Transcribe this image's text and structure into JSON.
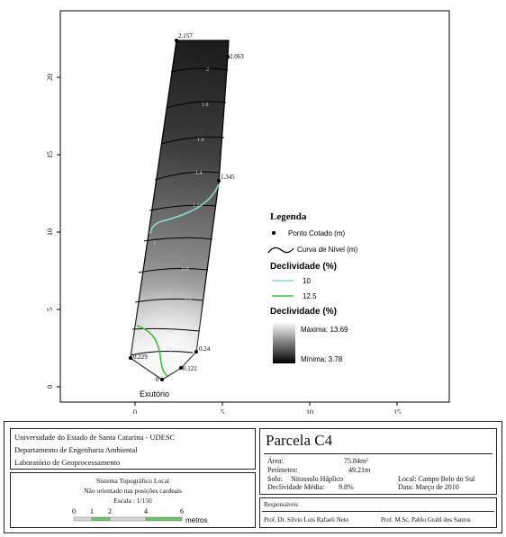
{
  "map": {
    "x_ticks": [
      "0",
      "5",
      "10",
      "15"
    ],
    "y_ticks": [
      "0",
      "5",
      "10",
      "15",
      "20"
    ],
    "points": [
      {
        "label": "2.157"
      },
      {
        "label": "2.063"
      },
      {
        "label": "1.345"
      },
      {
        "label": "0.24"
      },
      {
        "label": "0.122"
      },
      {
        "label": "0.229"
      },
      {
        "label": "0"
      }
    ],
    "contour_labels": [
      "2",
      "1.8",
      "1.6",
      "1.4",
      "1.2",
      "1",
      "0.8",
      "0.6",
      "0.4",
      "0.2"
    ],
    "outlet_label": "Exutório"
  },
  "legend": {
    "title": "Legenda",
    "point_label": "Ponto Cotado (m)",
    "contour_label": "Curva de Nível (m)",
    "slope_lines_title": "Declividade (%)",
    "slope_line_10": "10",
    "slope_line_12_5": "12.5",
    "slope_ramp_title": "Declividade (%)",
    "max_label": "Máxima: 13.69",
    "min_label": "Mínima: 3.78",
    "colors": {
      "line_10": "#8fd6c8",
      "line_12_5": "#3fbf3f"
    }
  },
  "title_block": {
    "institution": [
      "Universidade do Estado de Santa Catarina - UDESC",
      "Departamento de Engenharia Ambiental",
      "Laboratório de Geoprocessamento"
    ],
    "system": [
      "Sistema Topográfico Local",
      "Não orientado nas posições cardeais",
      "Escala : 1/150"
    ],
    "scale_ticks": [
      "0",
      "1",
      "2",
      "4",
      "6"
    ],
    "scale_unit": "metros",
    "plot_title": "Parcela C4",
    "area_label": "Área:",
    "area_value": "75.84m²",
    "perimeter_label": "Perímetro:",
    "perimeter_value": "49.21m",
    "soil_label": "Solo:",
    "soil_value": "Nitossolo  Háplico",
    "slope_label": "Declividade Média:",
    "slope_value": "9.8%",
    "location": "Local: Campo Belo do Sul",
    "date": "Data: Março de 2010",
    "responsible_title": "Responsáveis",
    "responsible_1": "Prof. Dr. Sílvio Luís Rafaeli Neto",
    "responsible_2": "Prof. M.Sc. Pablo Grahl dos Santos"
  }
}
